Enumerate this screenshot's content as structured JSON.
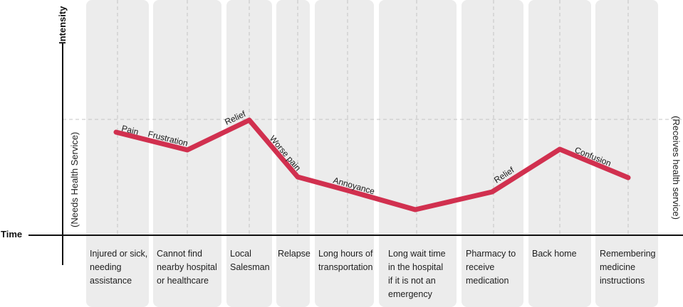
{
  "axes": {
    "y_title": "Intensity",
    "x_title": "Time",
    "left_label": "(Needs Health Service)",
    "right_label": "(Receives health service)"
  },
  "stages": [
    {
      "label": "Injured or sick,\nneeding\nassistance"
    },
    {
      "label": "Cannot find\nnearby hospital\nor healthcare"
    },
    {
      "label": "Local\nSalesman"
    },
    {
      "label": "Relapse"
    },
    {
      "label": "Long hours of\ntransportation"
    },
    {
      "label": "Long wait time\nin the hospital\nif it is not an\nemergency"
    },
    {
      "label": "Pharmacy to\nreceive\nmedication"
    },
    {
      "label": "Back home"
    },
    {
      "label": "Remembering\nmedicine\ninstructions"
    }
  ],
  "journey": {
    "emotions": [
      "Pain",
      "Frustration",
      "Relief",
      "Worse pain",
      "Annoyance",
      "Relief",
      "Confusion"
    ],
    "line_color": "#d1304f"
  },
  "colors": {
    "column_bg": "#ececec",
    "axis": "#111111",
    "guide": "#c4c4c4"
  }
}
